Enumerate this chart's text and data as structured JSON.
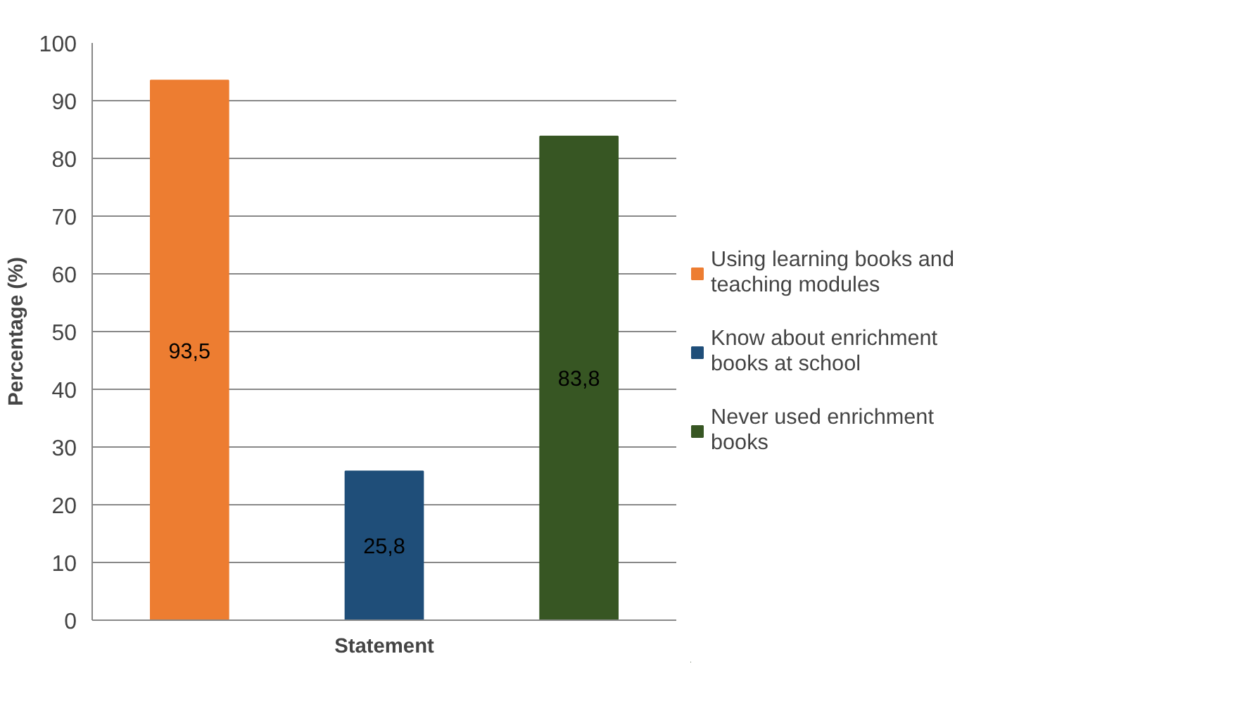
{
  "chart_data": {
    "type": "bar",
    "xlabel": "Statement",
    "ylabel": "Percentage (%)",
    "categories": [
      null
    ],
    "series": [
      {
        "name": "Using learning books and teaching modules",
        "color": "#ed7d31",
        "values": [
          93.5
        ],
        "value_labels": [
          "93,5"
        ]
      },
      {
        "name": "Know about enrichment books at school",
        "color": "#1f4e79",
        "values": [
          25.8
        ],
        "value_labels": [
          "25,8"
        ]
      },
      {
        "name": "Never used enrichment books",
        "color": "#375623",
        "values": [
          83.8
        ],
        "value_labels": [
          "83,8"
        ]
      }
    ],
    "ylim": [
      0,
      100
    ],
    "yticks": [
      0,
      10,
      20,
      30,
      40,
      50,
      60,
      70,
      80,
      90,
      100
    ],
    "grid": "y",
    "legend": "right"
  }
}
